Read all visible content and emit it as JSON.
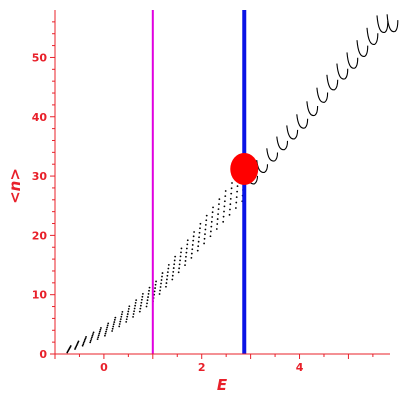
{
  "chart_data": {
    "type": "scatter",
    "xlabel": "E",
    "ylabel": "<n>",
    "xlim": [
      -1,
      5.85
    ],
    "ylim": [
      0,
      58
    ],
    "x_ticks": [
      0,
      2,
      4
    ],
    "y_ticks": [
      0,
      10,
      20,
      30,
      40,
      50
    ],
    "grid": false,
    "legend": "none",
    "colors": {
      "axes": "#e8202a",
      "points": "#000000",
      "marker": "#ff0000",
      "line_magenta": "#e000e0",
      "line_blue": "#0a14e6"
    },
    "vertical_lines": [
      {
        "x": 1.0,
        "color": "#e000e0",
        "width": "thin"
      },
      {
        "x": 2.87,
        "color": "#0a14e6",
        "width": "thick"
      }
    ],
    "highlight_point": {
      "x": 2.87,
      "y": 31.2
    },
    "point_series": {
      "trend": [
        {
          "x": -0.75,
          "y": 0.8
        },
        {
          "x": 0.0,
          "y": 4.0
        },
        {
          "x": 0.5,
          "y": 7.0
        },
        {
          "x": 1.0,
          "y": 10.5
        },
        {
          "x": 1.5,
          "y": 15.5
        },
        {
          "x": 2.0,
          "y": 20.5
        },
        {
          "x": 2.5,
          "y": 25.5
        },
        {
          "x": 2.87,
          "y": 29.0
        },
        {
          "x": 3.5,
          "y": 35.0
        },
        {
          "x": 4.0,
          "y": 39.5
        },
        {
          "x": 4.5,
          "y": 45.0
        },
        {
          "x": 5.0,
          "y": 49.5
        },
        {
          "x": 5.6,
          "y": 55.5
        }
      ]
    }
  }
}
